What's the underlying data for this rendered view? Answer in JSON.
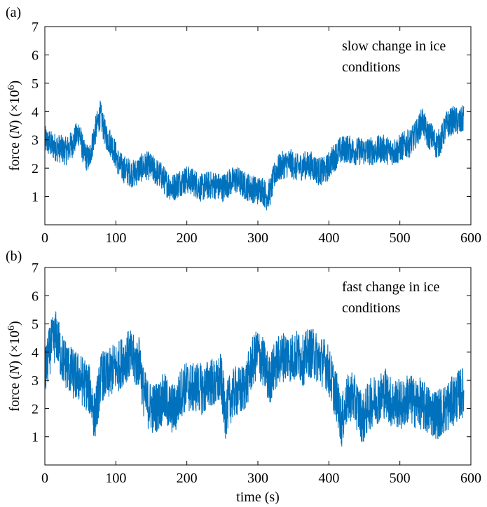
{
  "figure": {
    "xlabel": "time (s)",
    "line_color": "#0072BD"
  },
  "chart_data": [
    {
      "type": "line",
      "panel_label": "(a)",
      "annotation": [
        "slow change in ice",
        "conditions"
      ],
      "ylabel_parts": [
        "force (",
        "N",
        ") (×10",
        "6",
        ")"
      ],
      "xlim": [
        0,
        600
      ],
      "ylim": [
        0,
        7
      ],
      "xticks": [
        0,
        100,
        200,
        300,
        400,
        500,
        600
      ],
      "yticks": [
        1,
        2,
        3,
        4,
        5,
        6,
        7
      ],
      "x_end": 590,
      "grid": false,
      "series": [
        {
          "x": [
            0,
            10,
            20,
            30,
            40,
            48,
            55,
            62,
            70,
            78,
            85,
            95,
            105,
            115,
            125,
            135,
            145,
            155,
            165,
            170,
            180,
            190,
            200,
            210,
            220,
            230,
            240,
            250,
            260,
            270,
            280,
            290,
            300,
            305,
            312,
            318,
            325,
            335,
            345,
            355,
            365,
            375,
            385,
            395,
            405,
            415,
            425,
            435,
            445,
            455,
            465,
            475,
            485,
            495,
            505,
            515,
            525,
            532,
            538,
            545,
            552,
            558,
            565,
            575,
            585,
            590
          ],
          "center": [
            3.0,
            2.8,
            2.7,
            2.6,
            2.9,
            3.3,
            2.5,
            2.3,
            3.2,
            3.9,
            3.2,
            2.8,
            2.1,
            1.9,
            1.8,
            2.0,
            2.1,
            1.9,
            1.7,
            1.5,
            1.3,
            1.5,
            1.6,
            1.5,
            1.3,
            1.4,
            1.4,
            1.3,
            1.5,
            1.6,
            1.4,
            1.3,
            1.2,
            1.3,
            1.0,
            1.2,
            1.9,
            2.1,
            2.2,
            2.0,
            2.1,
            2.1,
            1.9,
            1.9,
            2.3,
            2.6,
            2.7,
            2.6,
            2.6,
            2.6,
            2.6,
            2.7,
            2.6,
            2.6,
            2.8,
            2.9,
            3.3,
            3.7,
            3.2,
            3.1,
            2.8,
            3.0,
            3.5,
            3.7,
            3.6,
            3.8
          ],
          "spread": 0.5
        }
      ]
    },
    {
      "type": "line",
      "panel_label": "(b)",
      "annotation": [
        "fast change in ice",
        "conditions"
      ],
      "ylabel_parts": [
        "force (",
        "N",
        ") (×10",
        "6",
        ")"
      ],
      "xlim": [
        0,
        600
      ],
      "ylim": [
        0,
        7
      ],
      "xticks": [
        0,
        100,
        200,
        300,
        400,
        500,
        600
      ],
      "yticks": [
        1,
        2,
        3,
        4,
        5,
        6,
        7
      ],
      "x_end": 590,
      "grid": false,
      "series": [
        {
          "x": [
            0,
            8,
            16,
            24,
            32,
            40,
            48,
            56,
            64,
            70,
            74,
            80,
            88,
            96,
            104,
            112,
            120,
            128,
            134,
            138,
            144,
            152,
            160,
            168,
            176,
            184,
            192,
            200,
            208,
            216,
            224,
            232,
            240,
            248,
            254,
            260,
            268,
            276,
            284,
            292,
            300,
            308,
            316,
            324,
            332,
            340,
            348,
            356,
            364,
            372,
            380,
            388,
            396,
            404,
            412,
            418,
            424,
            432,
            440,
            448,
            456,
            464,
            472,
            480,
            488,
            496,
            504,
            512,
            520,
            528,
            536,
            544,
            552,
            560,
            568,
            576,
            584,
            590
          ],
          "center": [
            3.2,
            4.2,
            4.6,
            3.8,
            3.5,
            3.2,
            3.1,
            2.9,
            2.6,
            1.7,
            2.3,
            3.2,
            3.1,
            3.4,
            3.5,
            3.8,
            3.9,
            3.6,
            3.7,
            2.7,
            2.2,
            2.0,
            2.1,
            2.4,
            2.0,
            2.0,
            2.6,
            2.8,
            2.7,
            2.8,
            2.6,
            3.0,
            2.8,
            3.1,
            1.8,
            2.3,
            2.6,
            2.6,
            2.9,
            3.6,
            4.0,
            3.6,
            3.0,
            3.5,
            3.8,
            3.9,
            3.8,
            3.9,
            3.7,
            4.0,
            3.9,
            3.7,
            3.6,
            3.0,
            2.3,
            1.5,
            2.2,
            2.5,
            2.1,
            1.6,
            2.1,
            2.3,
            2.4,
            2.6,
            2.2,
            2.2,
            2.1,
            2.4,
            2.2,
            2.2,
            2.0,
            1.9,
            1.8,
            1.9,
            2.1,
            2.3,
            2.5,
            2.6
          ],
          "spread": 0.9
        }
      ]
    }
  ]
}
